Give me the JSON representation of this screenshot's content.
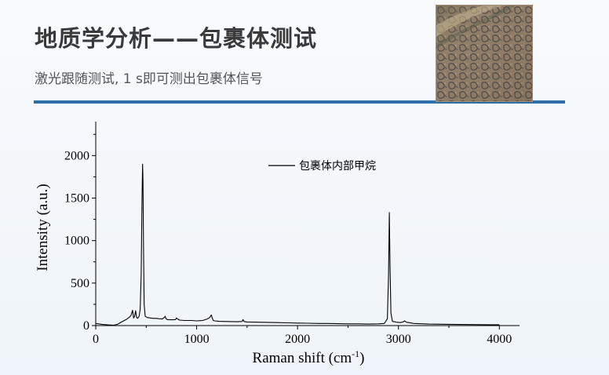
{
  "header": {
    "title": "地质学分析——包裹体测试",
    "subtitle": "激光跟随测试, 1 s即可测出包裹体信号"
  },
  "accent_color": "#2e6fa8",
  "sample_image": {
    "icon": "microscope-photo-of-inclusions"
  },
  "chart_data": {
    "type": "line",
    "xlabel_main": "Raman shift (cm",
    "xlabel_sup": "-1",
    "xlabel_end": ")",
    "ylabel": "Intensity (a.u.)",
    "xlim": [
      0,
      4200
    ],
    "ylim": [
      0,
      2400
    ],
    "x_ticks": [
      0,
      1000,
      2000,
      3000,
      4000
    ],
    "y_ticks": [
      0,
      500,
      1000,
      1500,
      2000
    ],
    "legend": {
      "label": "包裹体内部甲烷",
      "placement": "top-center"
    },
    "series": [
      {
        "name": "包裹体内部甲烷",
        "x": [
          0,
          60,
          120,
          180,
          220,
          260,
          300,
          330,
          350,
          365,
          375,
          385,
          395,
          405,
          415,
          430,
          440,
          450,
          458,
          464,
          468,
          474,
          480,
          490,
          510,
          540,
          570,
          600,
          630,
          660,
          680,
          688,
          696,
          710,
          750,
          790,
          800,
          815,
          830,
          880,
          950,
          1000,
          1060,
          1100,
          1130,
          1145,
          1155,
          1165,
          1180,
          1220,
          1300,
          1400,
          1450,
          1460,
          1470,
          1500,
          1600,
          1700,
          1800,
          1900,
          2000,
          2100,
          2200,
          2300,
          2400,
          2500,
          2600,
          2700,
          2800,
          2860,
          2890,
          2902,
          2910,
          2917,
          2925,
          2940,
          2980,
          3020,
          3050,
          3060,
          3080,
          3150,
          3300,
          3500,
          3700,
          3900,
          4000
        ],
        "y": [
          25,
          15,
          8,
          5,
          18,
          45,
          70,
          95,
          120,
          180,
          90,
          110,
          175,
          95,
          85,
          110,
          190,
          600,
          1450,
          1900,
          1700,
          900,
          250,
          110,
          95,
          90,
          85,
          85,
          80,
          78,
          95,
          110,
          80,
          70,
          68,
          70,
          90,
          75,
          65,
          60,
          60,
          55,
          60,
          75,
          95,
          125,
          90,
          60,
          55,
          50,
          48,
          45,
          48,
          70,
          48,
          42,
          40,
          38,
          35,
          32,
          30,
          28,
          25,
          25,
          22,
          20,
          20,
          18,
          20,
          25,
          80,
          600,
          1330,
          700,
          150,
          50,
          40,
          35,
          45,
          55,
          40,
          25,
          18,
          15,
          12,
          10,
          10
        ]
      }
    ]
  }
}
